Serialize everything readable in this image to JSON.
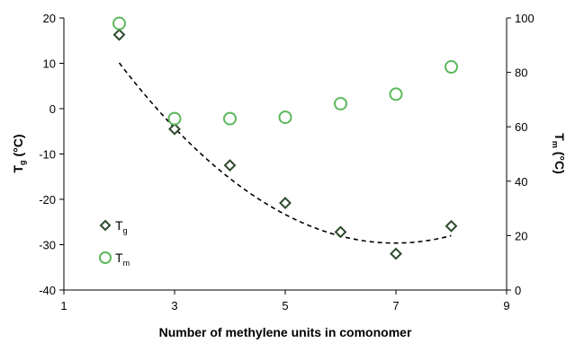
{
  "chart_data": {
    "type": "scatter",
    "xlabel": "Number of methylene units in comonomer",
    "y_left": {
      "label_main": "T",
      "label_sub": "g",
      "label_unit": " (°C)",
      "lim": [
        -40,
        20
      ],
      "ticks": [
        -40,
        -30,
        -20,
        -10,
        0,
        10,
        20
      ]
    },
    "y_right": {
      "label_main": "T",
      "label_sub": "m",
      "label_unit": " (°C)",
      "lim": [
        0,
        100
      ],
      "ticks": [
        0,
        20,
        40,
        60,
        80,
        100
      ]
    },
    "xlim": [
      1,
      9
    ],
    "x_ticks": [
      1,
      3,
      5,
      7,
      9
    ],
    "grid": false,
    "legend_position": "lower-left",
    "series": [
      {
        "name": "Tg",
        "name_main": "T",
        "name_sub": "g",
        "axis": "left",
        "marker": "diamond",
        "color": "#2e4a2e",
        "x": [
          2,
          3,
          4,
          5,
          6,
          7,
          8
        ],
        "y": [
          16.3,
          -4.5,
          -12.5,
          -20.8,
          -27.2,
          -32.0,
          -25.9
        ]
      },
      {
        "name": "Tm",
        "name_main": "T",
        "name_sub": "m",
        "axis": "right",
        "marker": "open-circle",
        "color": "#5cb85c",
        "x": [
          2,
          3,
          4,
          5,
          6,
          7,
          8
        ],
        "y": [
          98,
          63,
          63,
          63.5,
          68.5,
          72,
          82
        ]
      }
    ],
    "trendline": {
      "series": "Tg",
      "type": "polynomial-2",
      "style": "dashed",
      "color": "#000000",
      "coefficients": [
        1.6,
        -22.35,
        48.4
      ],
      "x_range": [
        2,
        8
      ]
    }
  }
}
